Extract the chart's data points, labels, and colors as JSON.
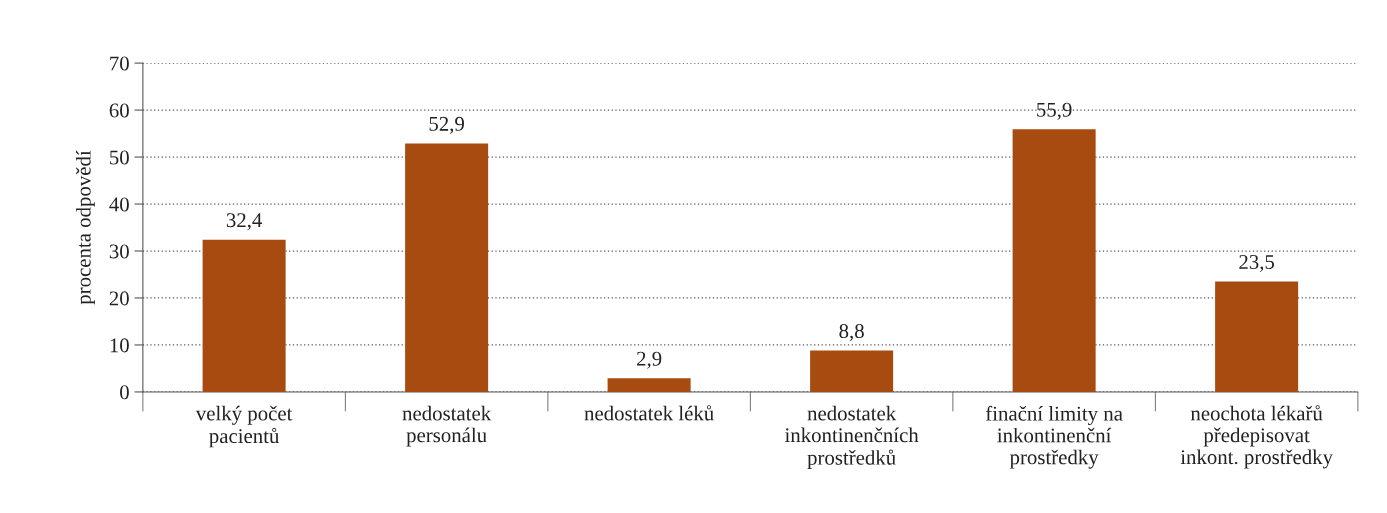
{
  "chart_data": {
    "type": "bar",
    "ylabel": "procenta odpovědí",
    "categories": [
      "velký počet\npacientů",
      "nedostatek\npersonálu",
      "nedostatek léků",
      "nedostatek\ninkontinenčních\nprostředků",
      "finační limity na\ninkontinenční\nprostředky",
      "neochota lékařů\npředepisovat\ninkont. prostředky"
    ],
    "values": [
      32.4,
      52.9,
      2.9,
      8.8,
      55.9,
      23.5
    ],
    "value_labels": [
      "32,4",
      "52,9",
      "2,9",
      "8,8",
      "55,9",
      "23,5"
    ],
    "color": "#a84b10",
    "ylim": [
      0,
      70
    ],
    "yticks": [
      0,
      10,
      20,
      30,
      40,
      50,
      60,
      70
    ],
    "grid": "y",
    "legend": false
  }
}
